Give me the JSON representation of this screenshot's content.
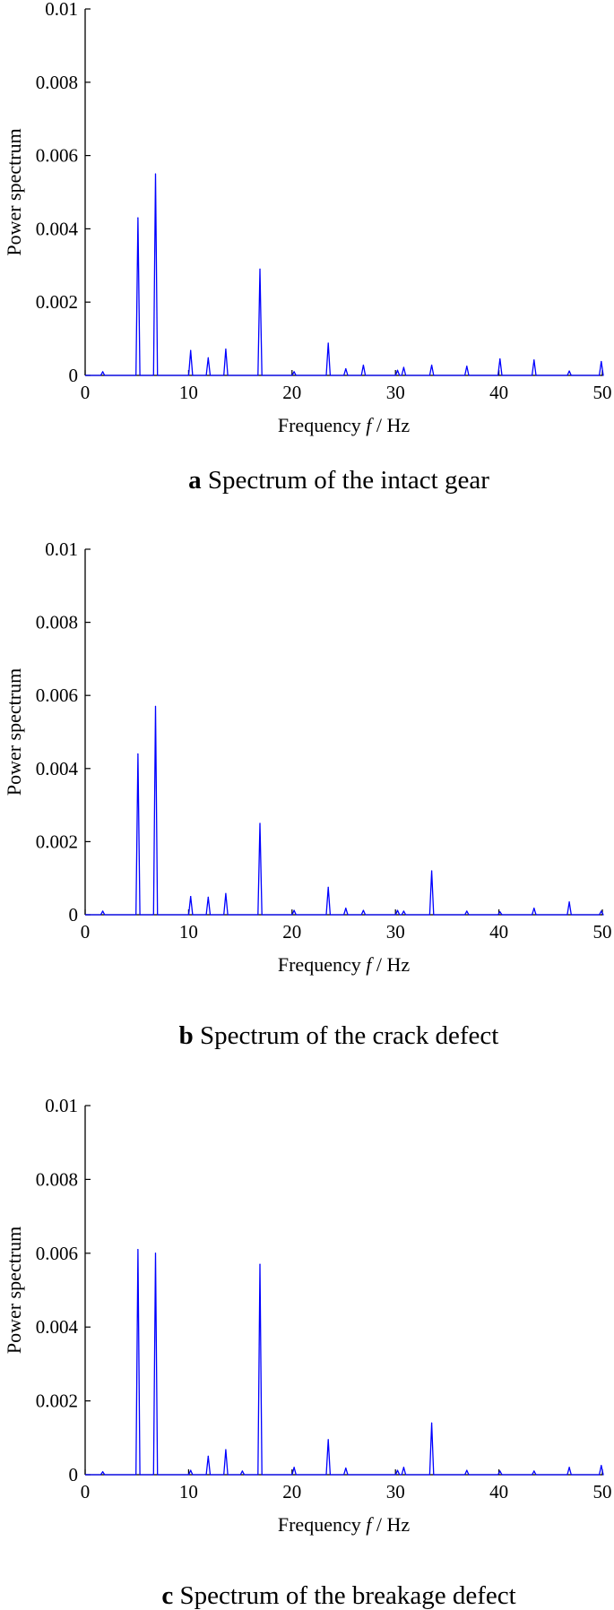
{
  "colors": {
    "series": "#0000ff",
    "axis": "#000000"
  },
  "chart_data": [
    {
      "type": "line",
      "caption_letter": "a",
      "caption": "Spectrum of the intact gear",
      "xlabel_prefix": "Frequency ",
      "xlabel_var": "f",
      "xlabel_suffix": " / Hz",
      "ylabel": "Power spectrum",
      "xlim": [
        0,
        50
      ],
      "ylim": [
        0,
        0.01
      ],
      "xticks": [
        "0",
        "10",
        "20",
        "30",
        "40",
        "50"
      ],
      "yticks": [
        "0",
        "0.002",
        "0.004",
        "0.006",
        "0.008",
        "0.01"
      ],
      "peaks": [
        [
          1.7,
          0.0001
        ],
        [
          5.1,
          0.0043
        ],
        [
          6.8,
          0.0055
        ],
        [
          10.2,
          0.00068
        ],
        [
          11.9,
          0.00048
        ],
        [
          13.6,
          0.00072
        ],
        [
          16.9,
          0.0029
        ],
        [
          20.2,
          0.0001
        ],
        [
          23.5,
          0.00088
        ],
        [
          25.2,
          0.00018
        ],
        [
          26.9,
          0.00028
        ],
        [
          30.2,
          0.00014
        ],
        [
          30.8,
          0.00022
        ],
        [
          33.5,
          0.00028
        ],
        [
          36.9,
          0.00025
        ],
        [
          40.1,
          0.00045
        ],
        [
          43.4,
          0.00042
        ],
        [
          46.8,
          0.00012
        ],
        [
          49.9,
          0.00038
        ]
      ]
    },
    {
      "type": "line",
      "caption_letter": "b",
      "caption": "Spectrum of the crack defect",
      "xlabel_prefix": "Frequency ",
      "xlabel_var": "f",
      "xlabel_suffix": " / Hz",
      "ylabel": "Power spectrum",
      "xlim": [
        0,
        50
      ],
      "ylim": [
        0,
        0.01
      ],
      "xticks": [
        "0",
        "10",
        "20",
        "30",
        "40",
        "50"
      ],
      "yticks": [
        "0",
        "0.002",
        "0.004",
        "0.006",
        "0.008",
        "0.01"
      ],
      "peaks": [
        [
          1.7,
          0.0001
        ],
        [
          5.1,
          0.0044
        ],
        [
          6.8,
          0.0057
        ],
        [
          10.2,
          0.0005
        ],
        [
          11.9,
          0.00048
        ],
        [
          13.6,
          0.00058
        ],
        [
          16.9,
          0.0025
        ],
        [
          20.2,
          0.00012
        ],
        [
          23.5,
          0.00075
        ],
        [
          25.2,
          0.00018
        ],
        [
          26.9,
          0.00012
        ],
        [
          30.2,
          0.00012
        ],
        [
          30.8,
          0.0001
        ],
        [
          33.5,
          0.0012
        ],
        [
          36.9,
          0.0001
        ],
        [
          40.1,
          8e-05
        ],
        [
          43.4,
          0.00018
        ],
        [
          46.8,
          0.00035
        ],
        [
          49.9,
          0.0001
        ]
      ]
    },
    {
      "type": "line",
      "caption_letter": "c",
      "caption": "Spectrum of the breakage defect",
      "xlabel_prefix": "Frequency ",
      "xlabel_var": "f",
      "xlabel_suffix": " / Hz",
      "ylabel": "Power spectrum",
      "xlim": [
        0,
        50
      ],
      "ylim": [
        0,
        0.01
      ],
      "xticks": [
        "0",
        "10",
        "20",
        "30",
        "40",
        "50"
      ],
      "yticks": [
        "0",
        "0.002",
        "0.004",
        "0.006",
        "0.008",
        "0.01"
      ],
      "peaks": [
        [
          1.7,
          8e-05
        ],
        [
          5.1,
          0.0061
        ],
        [
          6.8,
          0.006
        ],
        [
          10.2,
          0.00012
        ],
        [
          11.9,
          0.0005
        ],
        [
          13.6,
          0.00068
        ],
        [
          15.2,
          0.0001
        ],
        [
          16.9,
          0.0057
        ],
        [
          20.2,
          0.0002
        ],
        [
          23.5,
          0.00095
        ],
        [
          25.2,
          0.00018
        ],
        [
          30.2,
          0.00012
        ],
        [
          30.8,
          0.0002
        ],
        [
          33.5,
          0.0014
        ],
        [
          36.9,
          0.00012
        ],
        [
          40.1,
          0.0001
        ],
        [
          43.4,
          0.0001
        ],
        [
          46.8,
          0.0002
        ],
        [
          49.9,
          0.00025
        ]
      ]
    }
  ]
}
